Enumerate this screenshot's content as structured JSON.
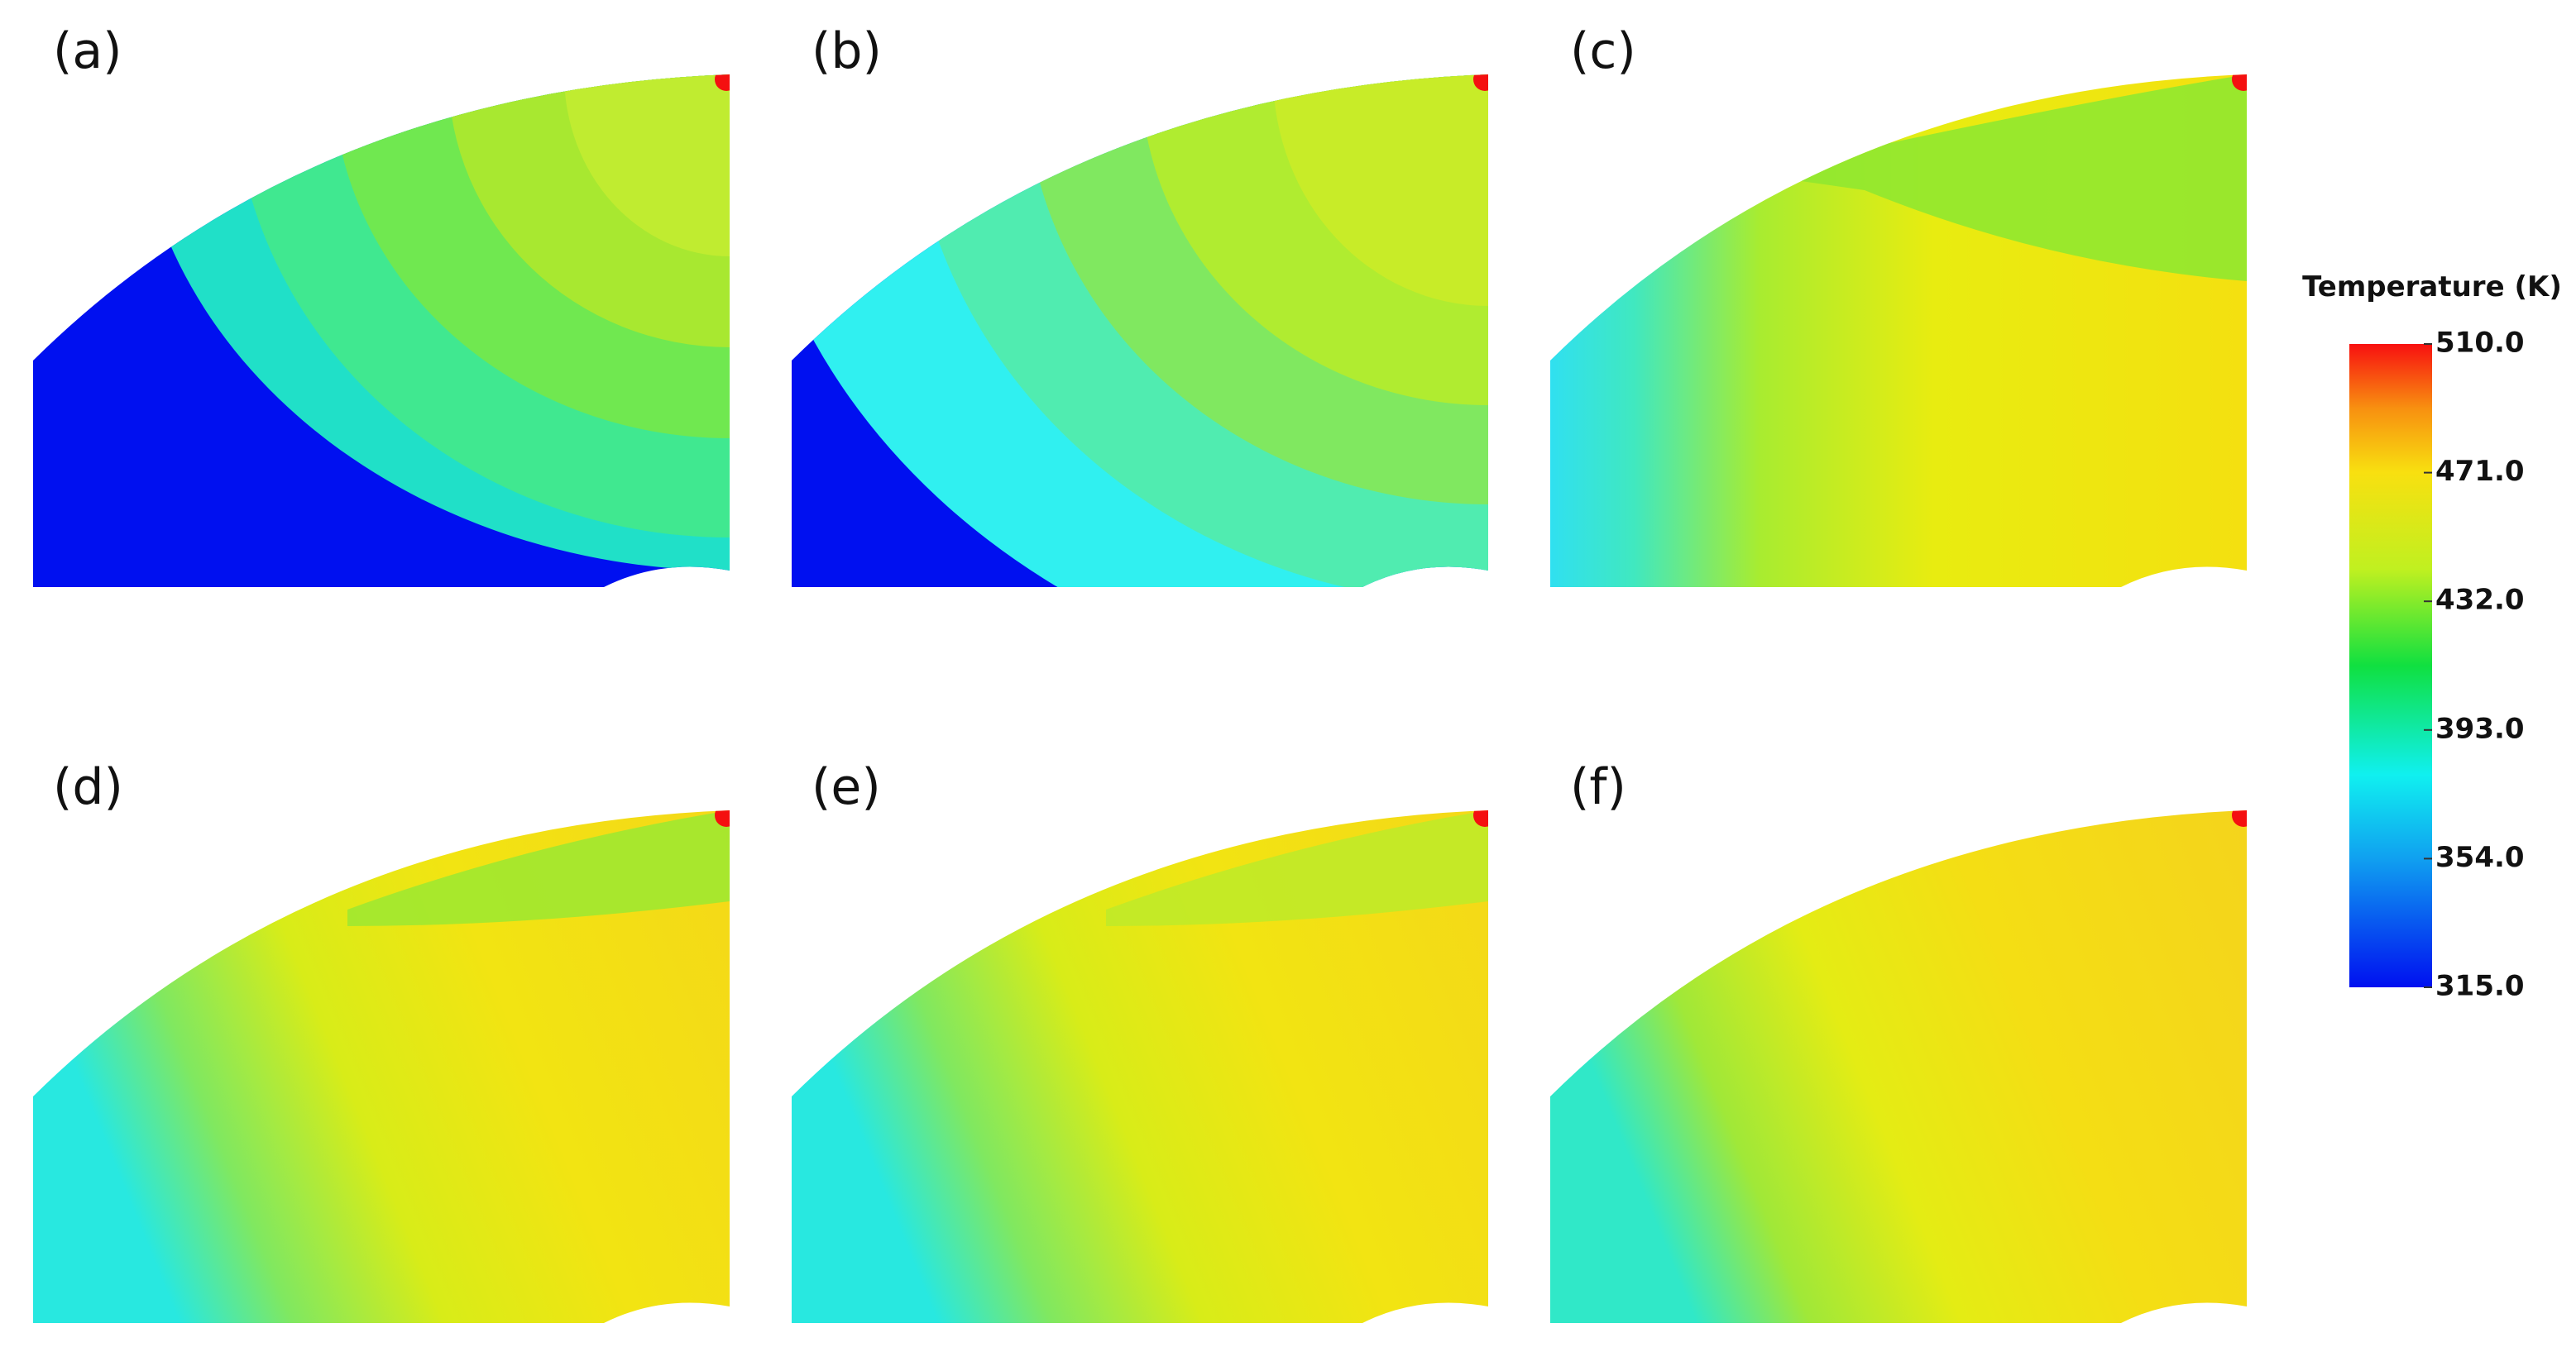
{
  "chart_data": {
    "type": "contour",
    "panels": [
      "(a)",
      "(b)",
      "(c)",
      "(d)",
      "(e)",
      "(f)"
    ],
    "colorbar": {
      "title": "Temperature (K)",
      "lim": [
        315,
        510
      ],
      "ticks": [
        {
          "value": 510,
          "label": "510.0"
        },
        {
          "value": 471,
          "label": "471.0"
        },
        {
          "value": 432,
          "label": "432.0"
        },
        {
          "value": 393,
          "label": "393.0"
        },
        {
          "value": 354,
          "label": "354.0"
        },
        {
          "value": 315,
          "label": "315.0"
        }
      ]
    }
  }
}
